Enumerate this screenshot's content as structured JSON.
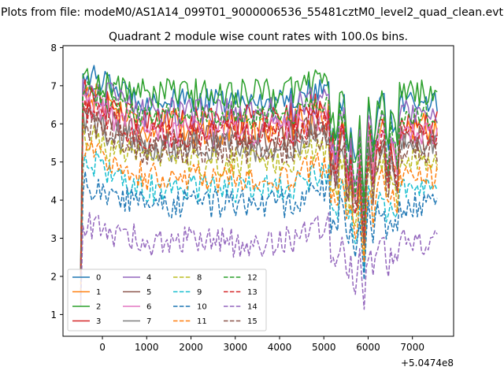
{
  "figure": {
    "suptitle": "Plots from file: modeM0/AS1A14_099T01_9000006536_55481cztM0_level2_quad_clean.evt",
    "x_offset_label": "+5.0474e8"
  },
  "chart_data": {
    "type": "line",
    "title": "Quadrant 2 module wise count rates with 100.0s bins.",
    "xlabel": "",
    "ylabel": "",
    "xlim": [
      -890,
      7930
    ],
    "ylim": [
      0.43,
      8.05
    ],
    "x_ticks": [
      0,
      1000,
      2000,
      3000,
      4000,
      5000,
      6000,
      7000
    ],
    "x_tick_labels": [
      "0",
      "1000",
      "2000",
      "3000",
      "4000",
      "5000",
      "6000",
      "7000"
    ],
    "y_ticks": [
      1,
      2,
      3,
      4,
      5,
      6,
      7,
      8
    ],
    "y_tick_labels": [
      "1",
      "2",
      "3",
      "4",
      "5",
      "6",
      "7",
      "8"
    ],
    "x_start": -490,
    "x_step": 50,
    "legend": {
      "location": "lower-left",
      "columns": 4
    },
    "series": [
      {
        "name": "0",
        "color": "#1f77b4",
        "dash": "solid",
        "level": 6.6,
        "first": 2.1,
        "start": 7.35,
        "amp": 0.2,
        "gap": 2.0
      },
      {
        "name": "1",
        "color": "#ff7f0e",
        "dash": "solid",
        "level": 5.9,
        "first": 1.3,
        "start": 6.9,
        "amp": 0.3,
        "gap": 2.1
      },
      {
        "name": "2",
        "color": "#2ca02c",
        "dash": "solid",
        "level": 6.8,
        "first": 2.4,
        "start": 7.2,
        "amp": 0.25,
        "gap": 2.2
      },
      {
        "name": "3",
        "color": "#d62728",
        "dash": "solid",
        "level": 6.1,
        "first": 2.3,
        "start": 6.8,
        "amp": 0.25,
        "gap": 2.0
      },
      {
        "name": "4",
        "color": "#9467bd",
        "dash": "solid",
        "level": 6.3,
        "first": 2.2,
        "start": 7.0,
        "amp": 0.25,
        "gap": 2.2
      },
      {
        "name": "5",
        "color": "#8c564b",
        "dash": "solid",
        "level": 5.6,
        "first": 2.0,
        "start": 6.3,
        "amp": 0.25,
        "gap": 1.9
      },
      {
        "name": "6",
        "color": "#e377c2",
        "dash": "solid",
        "level": 5.8,
        "first": 2.1,
        "start": 6.5,
        "amp": 0.25,
        "gap": 2.0
      },
      {
        "name": "7",
        "color": "#7f7f7f",
        "dash": "solid",
        "level": 5.4,
        "first": 2.0,
        "start": 6.1,
        "amp": 0.25,
        "gap": 1.9
      },
      {
        "name": "8",
        "color": "#bcbd22",
        "dash": "dashed",
        "level": 5.0,
        "first": 1.8,
        "start": 5.7,
        "amp": 0.25,
        "gap": 1.8
      },
      {
        "name": "9",
        "color": "#17becf",
        "dash": "dashed",
        "level": 4.3,
        "first": 1.6,
        "start": 5.1,
        "amp": 0.25,
        "gap": 1.5
      },
      {
        "name": "10",
        "color": "#1f77b4",
        "dash": "dashed",
        "level": 3.9,
        "first": 1.5,
        "start": 4.4,
        "amp": 0.25,
        "gap": 1.4
      },
      {
        "name": "11",
        "color": "#ff7f0e",
        "dash": "dashed",
        "level": 4.6,
        "first": 1.6,
        "start": 5.4,
        "amp": 0.25,
        "gap": 1.6
      },
      {
        "name": "12",
        "color": "#2ca02c",
        "dash": "dashed",
        "level": 6.2,
        "first": 2.2,
        "start": 6.9,
        "amp": 0.2,
        "gap": 2.1
      },
      {
        "name": "13",
        "color": "#d62728",
        "dash": "dashed",
        "level": 5.7,
        "first": 2.1,
        "start": 6.4,
        "amp": 0.25,
        "gap": 2.0
      },
      {
        "name": "14",
        "color": "#9467bd",
        "dash": "dashed",
        "level": 2.9,
        "first": 1.2,
        "start": 3.4,
        "amp": 0.25,
        "gap": 1.2
      },
      {
        "name": "15",
        "color": "#8c564b",
        "dash": "dashed",
        "level": 5.3,
        "first": 2.0,
        "start": 6.0,
        "amp": 0.25,
        "gap": 1.8
      }
    ]
  }
}
